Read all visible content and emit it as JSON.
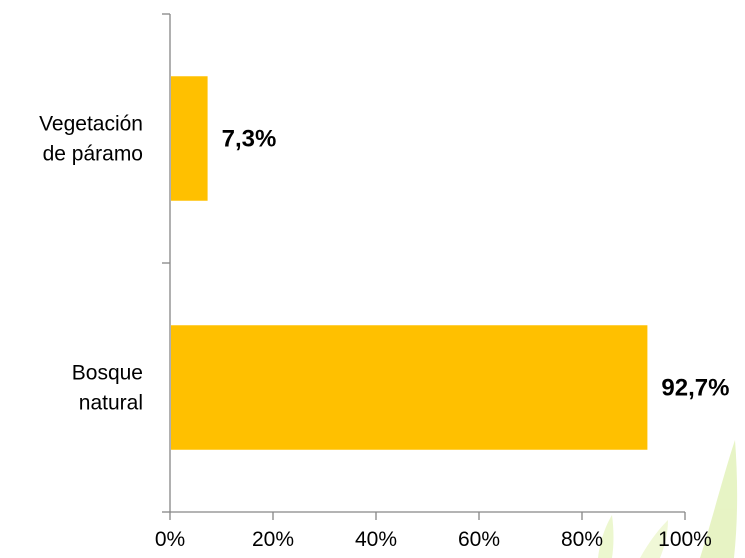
{
  "chart_data": {
    "type": "bar",
    "orientation": "horizontal",
    "categories": [
      [
        "Vegetación",
        "de páramo"
      ],
      [
        "Bosque",
        "natural"
      ]
    ],
    "values": [
      7.3,
      92.7
    ],
    "data_labels": [
      "7,3%",
      "92,7%"
    ],
    "xlim": [
      0,
      100
    ],
    "xticks": [
      0,
      20,
      40,
      60,
      80,
      100
    ],
    "xtick_labels": [
      "0%",
      "20%",
      "40%",
      "60%",
      "80%",
      "100%"
    ],
    "grid": false,
    "legend": "none",
    "bar_color": "#FFC000",
    "decoration_color": "#C6E27A"
  }
}
